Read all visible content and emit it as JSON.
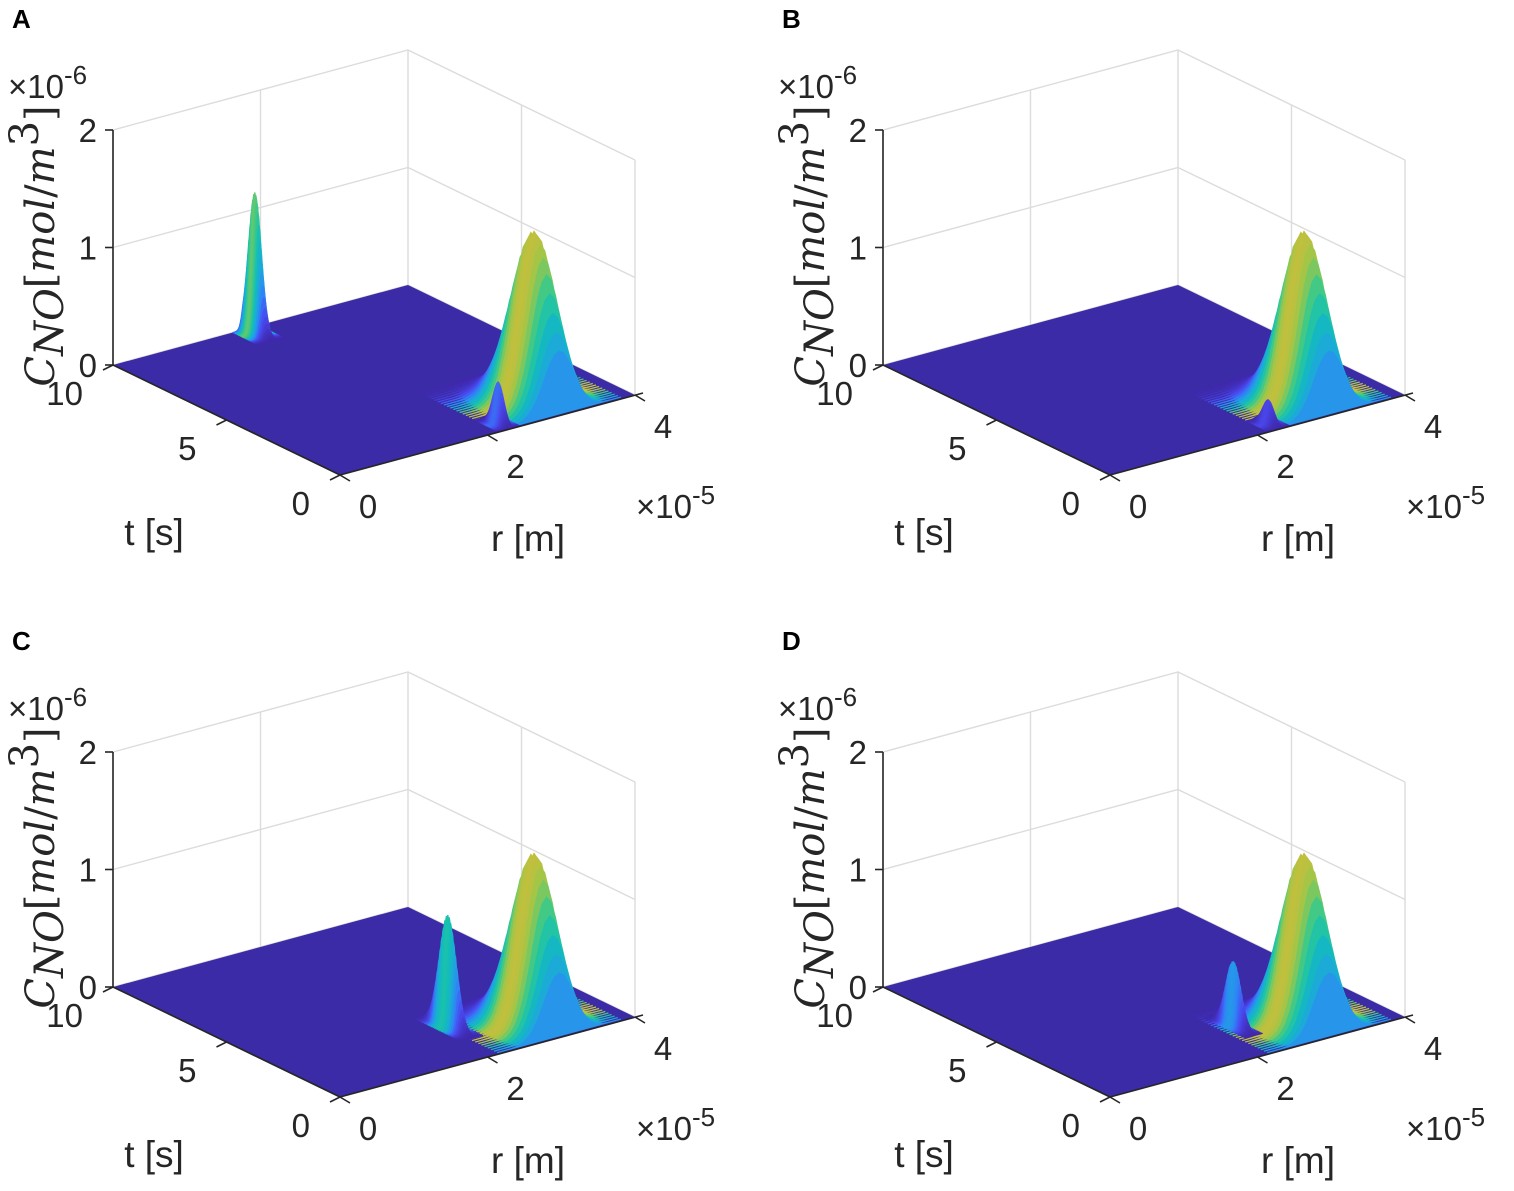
{
  "colors": {
    "floor": "#3B2BA6",
    "grid": "#DCDCDC",
    "axis": "#262626",
    "colormap": [
      "#3E26A8",
      "#4A49F0",
      "#2E87F6",
      "#1CAAD8",
      "#12BEB9",
      "#3AC98A",
      "#9CC74B",
      "#E3BA30",
      "#FDC82E",
      "#F9FB15"
    ]
  },
  "chart_data": [
    {
      "panel": "A",
      "type": "surface",
      "z_multiplier": "×10-6",
      "x_multiplier": "×10-5",
      "xlabel": "r [m]",
      "ylabel": "t [s]",
      "zlabel": "C_NO [mol/m^3]",
      "xlim": [
        0,
        4
      ],
      "ylim": [
        0,
        10
      ],
      "zlim": [
        0,
        2
      ],
      "xticks": [
        "0",
        "2",
        "4"
      ],
      "yticks": [
        "0",
        "5",
        "10"
      ],
      "zticks": [
        "0",
        "1",
        "2"
      ],
      "peaks": [
        {
          "r": 3.0,
          "t": 1.2,
          "height": 1.45,
          "width_r": 0.28,
          "width_t": 1.1
        },
        {
          "r": 1.8,
          "t": 9.6,
          "height": 1.2,
          "width_r": 0.06,
          "width_t": 0.35
        },
        {
          "r": 2.3,
          "t": 0.5,
          "height": 0.35,
          "width_r": 0.05,
          "width_t": 0.3
        }
      ]
    },
    {
      "panel": "B",
      "type": "surface",
      "z_multiplier": "×10-6",
      "x_multiplier": "×10-5",
      "xlabel": "r [m]",
      "ylabel": "t [s]",
      "zlabel": "C_NO [mol/m^3]",
      "xlim": [
        0,
        4
      ],
      "ylim": [
        0,
        10
      ],
      "zlim": [
        0,
        2
      ],
      "xticks": [
        "0",
        "2",
        "4"
      ],
      "yticks": [
        "0",
        "5",
        "10"
      ],
      "zticks": [
        "0",
        "1",
        "2"
      ],
      "peaks": [
        {
          "r": 3.0,
          "t": 1.2,
          "height": 1.45,
          "width_r": 0.28,
          "width_t": 1.1
        },
        {
          "r": 2.3,
          "t": 0.5,
          "height": 0.2,
          "width_r": 0.05,
          "width_t": 0.3
        }
      ]
    },
    {
      "panel": "C",
      "type": "surface",
      "z_multiplier": "×10-6",
      "x_multiplier": "×10-5",
      "xlabel": "r [m]",
      "ylabel": "t [s]",
      "zlabel": "C_NO [mol/m^3]",
      "xlim": [
        0,
        4
      ],
      "ylim": [
        0,
        10
      ],
      "zlim": [
        0,
        2
      ],
      "xticks": [
        "0",
        "2",
        "4"
      ],
      "yticks": [
        "0",
        "5",
        "10"
      ],
      "zticks": [
        "0",
        "1",
        "2"
      ],
      "peaks": [
        {
          "r": 3.0,
          "t": 1.2,
          "height": 1.45,
          "width_r": 0.28,
          "width_t": 1.1
        },
        {
          "r": 2.2,
          "t": 2.4,
          "height": 0.95,
          "width_r": 0.05,
          "width_t": 0.5
        }
      ]
    },
    {
      "panel": "D",
      "type": "surface",
      "z_multiplier": "×10-6",
      "x_multiplier": "×10-5",
      "xlabel": "r [m]",
      "ylabel": "t [s]",
      "zlabel": "C_NO [mol/m^3]",
      "xlim": [
        0,
        4
      ],
      "ylim": [
        0,
        10
      ],
      "zlim": [
        0,
        2
      ],
      "xticks": [
        "0",
        "2",
        "4"
      ],
      "yticks": [
        "0",
        "5",
        "10"
      ],
      "zticks": [
        "0",
        "1",
        "2"
      ],
      "peaks": [
        {
          "r": 3.0,
          "t": 1.2,
          "height": 1.45,
          "width_r": 0.28,
          "width_t": 1.1
        },
        {
          "r": 2.35,
          "t": 2.2,
          "height": 0.55,
          "width_r": 0.04,
          "width_t": 0.45
        }
      ]
    }
  ]
}
